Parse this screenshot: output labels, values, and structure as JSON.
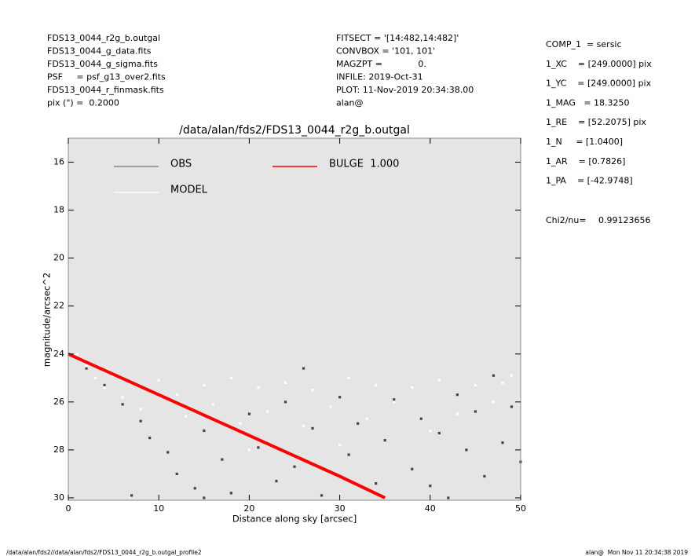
{
  "chart_data": {
    "type": "scatter",
    "title": "/data/alan/fds2/FDS13_0044_r2g_b.outgal",
    "x_label": "Distance along sky [arcsec]",
    "y_label": "magnitude/arcsec^2",
    "footer_left": "/data/alan/fds2//data/alan/fds2/FDS13_0044_r2g_b.outgal_profile2",
    "footer_right": "alan@  Mon Nov 11 20:34:38 2019",
    "header_left": [
      "FDS13_0044_r2g_b.outgal",
      "FDS13_0044_g_data.fits",
      "FDS13_0044_g_sigma.fits",
      "PSF     = psf_g13_over2.fits",
      "FDS13_0044_r_finmask.fits",
      "pix (\") =  0.2000"
    ],
    "header_middle": [
      "FITSECT = '[14:482,14:482]'",
      "CONVBOX = '101, 101'",
      "MAGZPT =             0.",
      "INFILE: 2019-Oct-31",
      "PLOT: 11-Nov-2019 20:34:38.00",
      "alan@"
    ],
    "header_right": [
      "COMP_1  = sersic",
      "1_XC    = [249.0000] pix",
      "1_YC    = [249.0000] pix",
      "1_MAG   = 18.3250",
      "1_RE    = [52.2075] pix",
      "1_N     = [1.0400]",
      "1_AR    = [0.7826]",
      "1_PA    = [-42.9748]"
    ],
    "chi2_label": "Chi2/nu=",
    "chi2_value": "0.99123656",
    "xlim": [
      0,
      50
    ],
    "ylim": [
      30.1,
      15
    ],
    "xticks": [
      0,
      10,
      20,
      30,
      40,
      50
    ],
    "yticks": [
      16,
      18,
      20,
      22,
      24,
      26,
      28,
      30
    ],
    "plot_background": "#e5e5e5",
    "series": [
      {
        "name": "OBS",
        "color": "#444444",
        "legend_color": "#888888",
        "type": "scatter",
        "x": [
          2,
          4,
          6,
          8,
          9,
          11,
          12,
          14,
          15,
          17,
          18,
          20,
          21,
          23,
          24,
          25,
          27,
          28,
          30,
          31,
          32,
          34,
          35,
          36,
          38,
          39,
          40,
          41,
          43,
          44,
          45,
          46,
          47,
          48,
          49,
          50,
          15,
          7,
          26,
          42
        ],
        "values": [
          24.6,
          25.3,
          26.1,
          26.8,
          27.5,
          28.1,
          29.0,
          29.6,
          27.2,
          28.4,
          29.8,
          26.5,
          27.9,
          29.3,
          26.0,
          28.7,
          27.1,
          29.9,
          25.8,
          28.2,
          26.9,
          29.4,
          27.6,
          25.9,
          28.8,
          26.7,
          29.5,
          27.3,
          25.7,
          28.0,
          26.4,
          29.1,
          24.9,
          27.7,
          26.2,
          28.5,
          30.0,
          29.9,
          24.6,
          30.0
        ]
      },
      {
        "name": "MODEL",
        "color": "#ffffff",
        "legend_color": "#ffffff",
        "type": "scatter",
        "x": [
          1,
          2,
          3,
          4,
          5,
          6,
          7,
          8,
          10,
          12,
          13,
          15,
          16,
          18,
          19,
          21,
          22,
          24,
          26,
          27,
          29,
          31,
          33,
          34,
          36,
          38,
          40,
          41,
          43,
          45,
          47,
          48,
          50,
          49,
          30,
          20
        ],
        "values": [
          24.0,
          24.5,
          25.0,
          25.4,
          24.9,
          25.8,
          25.2,
          26.3,
          25.1,
          25.7,
          26.6,
          25.3,
          26.1,
          25.0,
          26.9,
          25.4,
          26.4,
          25.2,
          27.0,
          25.5,
          26.2,
          25.0,
          26.7,
          25.3,
          26.0,
          25.4,
          27.2,
          25.1,
          26.5,
          25.3,
          26.0,
          25.2,
          25.9,
          24.9,
          27.8,
          28.0
        ]
      },
      {
        "name": "BULGE  1.000",
        "color": "#ff0000",
        "legend_color": "#ff0000",
        "type": "line",
        "x": [
          0,
          10,
          20,
          30,
          35
        ],
        "values": [
          24.0,
          25.7,
          27.4,
          29.1,
          30.0
        ]
      }
    ]
  }
}
